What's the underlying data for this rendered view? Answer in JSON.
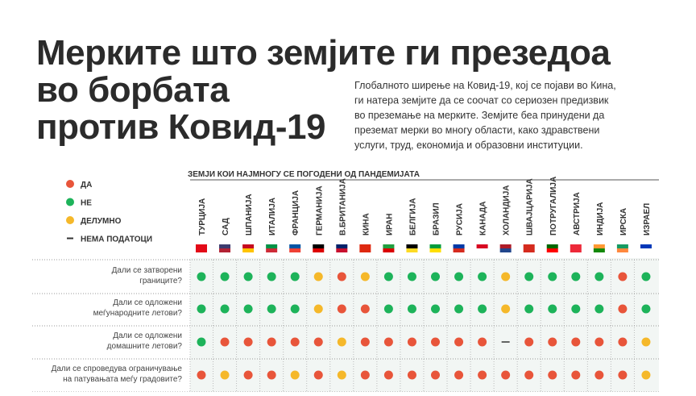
{
  "title_lines": [
    "Мерките што земјите ги презедоа",
    "во борбата",
    "против Ковид-19"
  ],
  "description_lines": [
    "Глобалното ширење на Ковид-19, кој се појави во Кина,",
    "ги натера земјите да се соочат со сериозен предизвик",
    "во преземање на мерките. Земјите беа принудени да",
    "преземат мерки во многу области, како здравствени",
    "услуги, труд, економија и образовни институции."
  ],
  "legend": [
    {
      "label": "ДА",
      "color": "#e8553a"
    },
    {
      "label": "НЕ",
      "color": "#1db35a"
    },
    {
      "label": "ДЕЛУМНО",
      "color": "#f5b82a"
    },
    {
      "label": "НЕМА ПОДАТОЦИ",
      "color": null
    }
  ],
  "table": {
    "header": "ЗЕМЈИ  КОИ НАЈМНОГУ СЕ ПОГОДЕНИ ОД ПАНДЕМИЈАТА",
    "countries": [
      "ТУРЦИЈА",
      "САД",
      "ШПАНИЈА",
      "ИТАЛИЈА",
      "ФРАНЦИЈА",
      "ГЕРМАНИЈА",
      "В.БРИТАНИЈА",
      "КИНА",
      "ИРАН",
      "БЕЛГИЈА",
      "БРАЗИЛ",
      "РУСИЈА",
      "КАНАДА",
      "ХОЛАНДИЈА",
      "ШВАЈЦАРИЈА",
      "ПОТРУГАЛИЈА",
      "АВСТРИЈА",
      "ИНДИЈА",
      "ИРСКА",
      "ИЗРАЕЛ"
    ],
    "rows": [
      {
        "question": [
          "Дали се затворени",
          "границите?"
        ],
        "cells": [
          1,
          1,
          1,
          1,
          1,
          2,
          0,
          2,
          1,
          1,
          1,
          1,
          1,
          2,
          1,
          1,
          1,
          1,
          0,
          1
        ]
      },
      {
        "question": [
          "Дали се одложени",
          "меѓународните летови?"
        ],
        "cells": [
          1,
          1,
          1,
          1,
          1,
          2,
          0,
          0,
          1,
          1,
          1,
          1,
          1,
          2,
          1,
          1,
          1,
          1,
          0,
          1
        ]
      },
      {
        "question": [
          "Дали се одложени",
          "домашните летови?"
        ],
        "cells": [
          1,
          0,
          0,
          0,
          0,
          0,
          2,
          0,
          0,
          0,
          0,
          0,
          0,
          3,
          0,
          0,
          0,
          0,
          0,
          2
        ]
      },
      {
        "question": [
          "Дали се спроведува ограничување",
          "на патувањата меѓу градовите?"
        ],
        "cells": [
          0,
          2,
          0,
          0,
          2,
          0,
          2,
          0,
          0,
          0,
          0,
          0,
          0,
          0,
          0,
          0,
          0,
          0,
          0,
          2
        ]
      }
    ]
  }
}
